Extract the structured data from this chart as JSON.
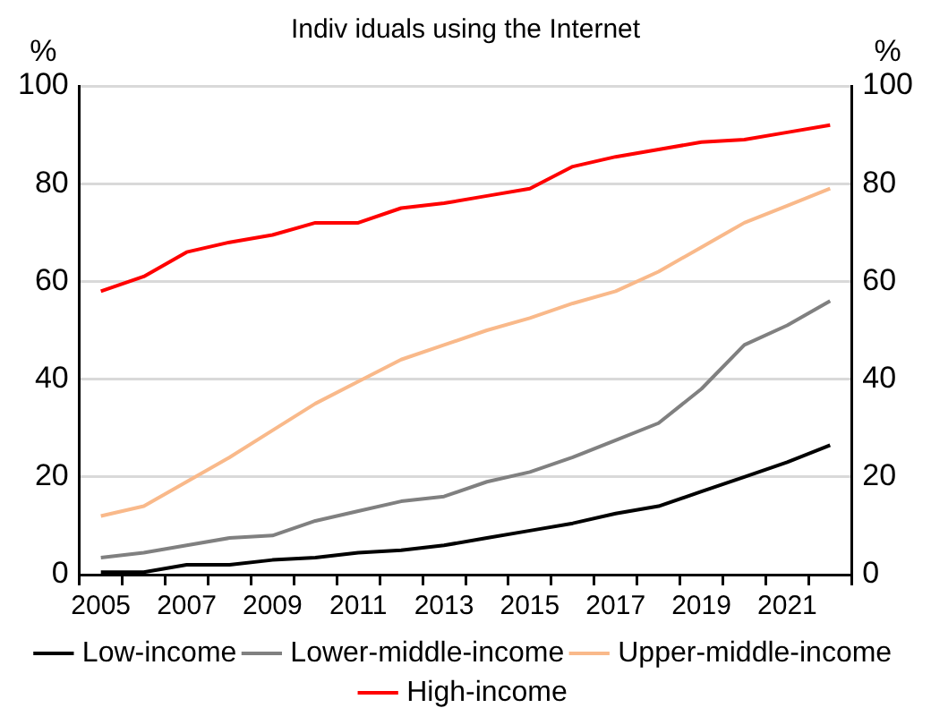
{
  "chart_data": {
    "type": "line",
    "title": "Indiv iduals using the Internet",
    "ylabel": "%",
    "y2label": "%",
    "categories": [
      "2005",
      null,
      "2007",
      null,
      "2009",
      null,
      "2011",
      null,
      "2013",
      null,
      "2015",
      null,
      "2017",
      null,
      "2019",
      null,
      "2021",
      null
    ],
    "series": [
      {
        "name": "Low-income",
        "color": "#000000",
        "values": [
          0.5,
          0.5,
          2,
          2,
          3,
          3.5,
          4.5,
          5,
          6,
          7.5,
          9,
          10.5,
          12.5,
          14,
          17,
          20,
          23,
          26.5
        ]
      },
      {
        "name": "Lower-middle-income",
        "color": "#808080",
        "values": [
          3.5,
          4.5,
          6,
          7.5,
          8,
          11,
          13,
          15,
          16,
          19,
          21,
          24,
          27.5,
          31,
          38,
          47,
          51,
          56
        ]
      },
      {
        "name": "Upper-middle-income",
        "color": "#f9b98a",
        "values": [
          12,
          14,
          19,
          24,
          29.5,
          35,
          39.5,
          44,
          47,
          50,
          52.5,
          55.5,
          58,
          62,
          67,
          72,
          75.5,
          79
        ]
      },
      {
        "name": "High-income",
        "color": "#ff0000",
        "values": [
          58,
          61,
          66,
          68,
          69.5,
          72,
          72,
          75,
          76,
          77.5,
          79,
          83.5,
          85.5,
          87,
          88.5,
          89,
          90.5,
          92
        ]
      }
    ],
    "ylim": [
      0,
      100
    ],
    "yticks": [
      0,
      20,
      40,
      60,
      80,
      100
    ],
    "y2lim": [
      0,
      100
    ],
    "y2ticks": [
      0,
      20,
      40,
      60,
      80,
      100
    ],
    "grid": "y",
    "legend": "bottom",
    "marker": "none",
    "line_style": "solid"
  }
}
